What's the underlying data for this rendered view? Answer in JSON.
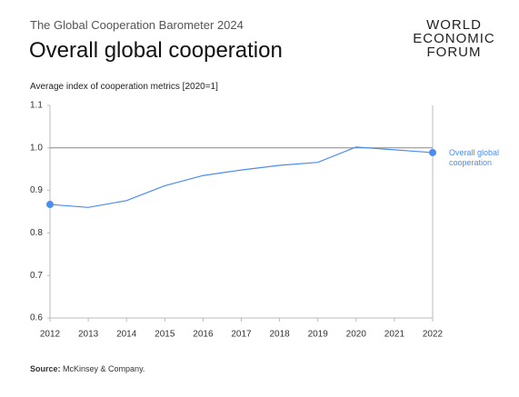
{
  "header": {
    "subtitle": "The Global Cooperation Barometer 2024",
    "logo": [
      "WORLD",
      "ECONOMIC",
      "FORUM"
    ]
  },
  "chart_data": {
    "type": "line",
    "title": "Overall global cooperation",
    "y_label": "Average index of cooperation metrics [2020=1]",
    "x": [
      2012,
      2013,
      2014,
      2015,
      2016,
      2017,
      2018,
      2019,
      2020,
      2022
    ],
    "xlim": [
      2012,
      2022
    ],
    "xticks": [
      2012,
      2013,
      2014,
      2015,
      2016,
      2017,
      2018,
      2019,
      2020,
      2021,
      2022
    ],
    "ylim": [
      0.6,
      1.1
    ],
    "yticks": [
      0.6,
      0.7,
      0.8,
      0.9,
      {
        "value": 1,
        "label": "1.0"
      },
      1.1
    ],
    "reference_line": 1,
    "series": [
      {
        "name": "Overall global cooperation",
        "color": "#4a8df0",
        "values": [
          0.867,
          0.86,
          0.876,
          0.911,
          0.935,
          0.948,
          0.959,
          0.966,
          1.002,
          0.989
        ]
      }
    ]
  },
  "footer": {
    "source_label": "Source:",
    "source": "McKinsey & Company."
  }
}
